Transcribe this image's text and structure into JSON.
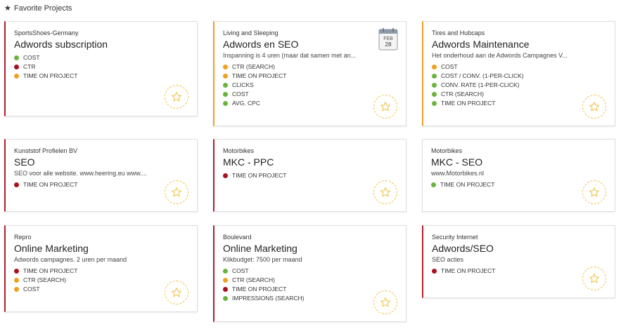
{
  "header": {
    "title": "Favorite Projects"
  },
  "colors": {
    "green": "#6ab43e",
    "red": "#a8101e",
    "orange": "#f0a020",
    "fav_star": "#f0c040"
  },
  "cards": [
    {
      "client": "SportsShoes-Germany",
      "project": "Adwords subscription",
      "description": "",
      "accent": "red",
      "metrics": [
        {
          "label": "COST",
          "status": "green"
        },
        {
          "label": "CTR",
          "status": "red"
        },
        {
          "label": "TIME ON PROJECT",
          "status": "orange"
        }
      ]
    },
    {
      "client": "Living and Sleeping",
      "project": "Adwords en SEO",
      "description": "Inspanning is 4 uren (maar dat samen met an...",
      "accent": "orange",
      "calendar": {
        "month": "FEB",
        "day": "28"
      },
      "metrics": [
        {
          "label": "CTR (SEARCH)",
          "status": "orange"
        },
        {
          "label": "TIME ON PROJECT",
          "status": "orange"
        },
        {
          "label": "CLICKS",
          "status": "green"
        },
        {
          "label": "COST",
          "status": "green"
        },
        {
          "label": "AVG. CPC",
          "status": "green"
        }
      ]
    },
    {
      "client": "Tires and Hubcaps",
      "project": "Adwords Maintenance",
      "description": "Het onderhoud aan de Adwords Campagnes V...",
      "accent": "orange",
      "metrics": [
        {
          "label": "COST",
          "status": "orange"
        },
        {
          "label": "COST / CONV. (1-PER-CLICK)",
          "status": "green"
        },
        {
          "label": "CONV. RATE (1-PER-CLICK)",
          "status": "green"
        },
        {
          "label": "CTR (SEARCH)",
          "status": "green"
        },
        {
          "label": "TIME ON PROJECT",
          "status": "green"
        }
      ]
    },
    {
      "client": "Kunststof Profielen BV",
      "project": "SEO",
      "description": "SEO voor alle website. www.heering.eu www....",
      "accent": "red",
      "metrics": [
        {
          "label": "TIME ON PROJECT",
          "status": "red"
        }
      ]
    },
    {
      "client": "Motorbikes",
      "project": "MKC - PPC",
      "description": "",
      "accent": "red",
      "metrics": [
        {
          "label": "TIME ON PROJECT",
          "status": "red"
        }
      ]
    },
    {
      "client": "Motorbikes",
      "project": "MKC - SEO",
      "description": "www.Motorbikes.nl",
      "accent": "none",
      "metrics": [
        {
          "label": "TIME ON PROJECT",
          "status": "green"
        }
      ]
    },
    {
      "client": "Repro",
      "project": "Online Marketing",
      "description": "Adwords campagnes. 2 uren per maand",
      "accent": "red",
      "metrics": [
        {
          "label": "TIME ON PROJECT",
          "status": "red"
        },
        {
          "label": "CTR (SEARCH)",
          "status": "orange"
        },
        {
          "label": "COST",
          "status": "orange"
        }
      ]
    },
    {
      "client": "Boulevard",
      "project": "Online Marketing",
      "description": "Klikbudget: 7500 per maand",
      "accent": "red",
      "metrics": [
        {
          "label": "COST",
          "status": "green"
        },
        {
          "label": "CTR (SEARCH)",
          "status": "orange"
        },
        {
          "label": "TIME ON PROJECT",
          "status": "red"
        },
        {
          "label": "IMPRESSIONS (SEARCH)",
          "status": "green"
        }
      ]
    },
    {
      "client": "Security Internet",
      "project": "Adwords/SEO",
      "description": "SEO acties",
      "accent": "red",
      "metrics": [
        {
          "label": "TIME ON PROJECT",
          "status": "red"
        }
      ]
    }
  ]
}
